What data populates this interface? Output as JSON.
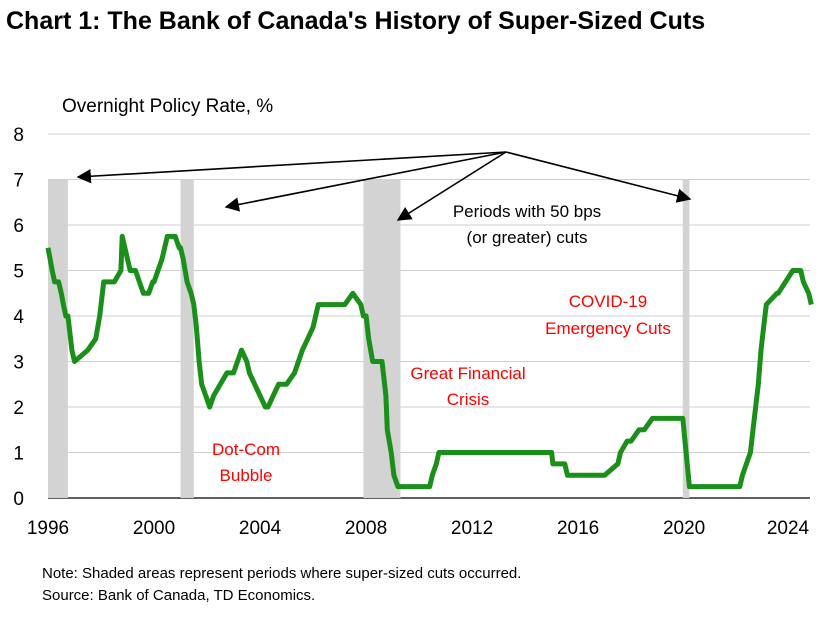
{
  "chart_data": {
    "type": "line",
    "title": "Chart 1: The Bank of Canada's History of Super-Sized Cuts",
    "ylabel": "Overnight Policy Rate, %",
    "xlabel": "",
    "xlim": [
      1996,
      2024.75
    ],
    "ylim": [
      0,
      8
    ],
    "grid": true,
    "x_ticks": [
      1996,
      2000,
      2004,
      2008,
      2012,
      2016,
      2020,
      2024
    ],
    "x_tick_labels": [
      "1996",
      "2000",
      "2004",
      "2008",
      "2012",
      "2016",
      "2020",
      "2024"
    ],
    "y_ticks": [
      0,
      1,
      2,
      3,
      4,
      5,
      6,
      7,
      8
    ],
    "y_tick_labels": [
      "0",
      "1",
      "2",
      "3",
      "4",
      "5",
      "6",
      "7",
      "8"
    ],
    "line_color": "#1a8f1a",
    "shade_color": "#d3d3d3",
    "shaded_periods": [
      {
        "start": 1996.0,
        "end": 1996.75
      },
      {
        "start": 2001.0,
        "end": 2001.5
      },
      {
        "start": 2007.9,
        "end": 2009.3
      },
      {
        "start": 2019.95,
        "end": 2020.2
      }
    ],
    "series": [
      {
        "name": "Overnight Policy Rate",
        "x": [
          1996.0,
          1996.08,
          1996.16,
          1996.25,
          1996.4,
          1996.5,
          1996.58,
          1996.67,
          1996.75,
          1996.9,
          1997.0,
          1997.5,
          1997.8,
          1997.95,
          1998.1,
          1998.3,
          1998.5,
          1998.75,
          1998.8,
          1998.9,
          1999.0,
          1999.1,
          1999.3,
          1999.45,
          1999.6,
          1999.8,
          1999.95,
          2000.0,
          2000.15,
          2000.3,
          2000.5,
          2000.7,
          2000.8,
          2000.95,
          2001.0,
          2001.1,
          2001.25,
          2001.4,
          2001.5,
          2001.6,
          2001.7,
          2001.8,
          2001.95,
          2002.1,
          2002.25,
          2002.5,
          2002.75,
          2003.0,
          2003.3,
          2003.5,
          2003.6,
          2003.8,
          2004.0,
          2004.2,
          2004.3,
          2004.5,
          2004.7,
          2005.0,
          2005.3,
          2005.6,
          2005.8,
          2006.0,
          2006.2,
          2006.5,
          2006.8,
          2007.2,
          2007.5,
          2007.8,
          2007.9,
          2008.0,
          2008.1,
          2008.25,
          2008.4,
          2008.6,
          2008.75,
          2008.8,
          2008.95,
          2009.05,
          2009.2,
          2009.3,
          2010.4,
          2010.5,
          2010.65,
          2010.75,
          2012.0,
          2014.0,
          2015.0,
          2015.05,
          2015.5,
          2015.6,
          2017.0,
          2017.5,
          2017.6,
          2017.85,
          2018.0,
          2018.3,
          2018.5,
          2018.8,
          2019.95,
          2020.2,
          2022.1,
          2022.2,
          2022.5,
          2022.6,
          2022.8,
          2022.9,
          2023.0,
          2023.1,
          2023.5,
          2023.55,
          2024.1,
          2024.4,
          2024.5,
          2024.7,
          2024.8
        ],
        "values": [
          5.5,
          5.25,
          5.0,
          4.75,
          4.75,
          4.5,
          4.25,
          4.0,
          4.0,
          3.25,
          3.0,
          3.25,
          3.5,
          4.0,
          4.75,
          4.75,
          4.75,
          5.0,
          5.75,
          5.5,
          5.25,
          5.0,
          5.0,
          4.75,
          4.5,
          4.5,
          4.75,
          4.75,
          5.0,
          5.25,
          5.75,
          5.75,
          5.75,
          5.5,
          5.5,
          5.25,
          4.75,
          4.5,
          4.25,
          3.75,
          3.0,
          2.5,
          2.25,
          2.0,
          2.25,
          2.5,
          2.75,
          2.75,
          3.25,
          3.0,
          2.75,
          2.5,
          2.25,
          2.0,
          2.0,
          2.25,
          2.5,
          2.5,
          2.75,
          3.25,
          3.5,
          3.75,
          4.25,
          4.25,
          4.25,
          4.25,
          4.5,
          4.25,
          4.0,
          4.0,
          3.5,
          3.0,
          3.0,
          3.0,
          2.25,
          1.5,
          1.0,
          0.5,
          0.25,
          0.25,
          0.25,
          0.5,
          0.75,
          1.0,
          1.0,
          1.0,
          1.0,
          0.75,
          0.75,
          0.5,
          0.5,
          0.75,
          1.0,
          1.25,
          1.25,
          1.5,
          1.5,
          1.75,
          1.75,
          0.25,
          0.25,
          0.5,
          1.0,
          1.5,
          2.5,
          3.25,
          3.75,
          4.25,
          4.5,
          4.5,
          5.0,
          5.0,
          4.75,
          4.5,
          4.25
        ]
      }
    ],
    "annotations": {
      "periods_line1": "Periods with 50 bps",
      "periods_line2": "(or greater) cuts",
      "dotcom_line1": "Dot-Com",
      "dotcom_line2": "Bubble",
      "gfc_line1": "Great Financial",
      "gfc_line2": "Crisis",
      "covid_line1": "COVID-19",
      "covid_line2": "Emergency Cuts",
      "label_color": "#ff0000"
    }
  },
  "notes": {
    "note": "Note: Shaded areas represent periods where super-sized cuts occurred.",
    "source": "Source: Bank of Canada, TD Economics."
  }
}
